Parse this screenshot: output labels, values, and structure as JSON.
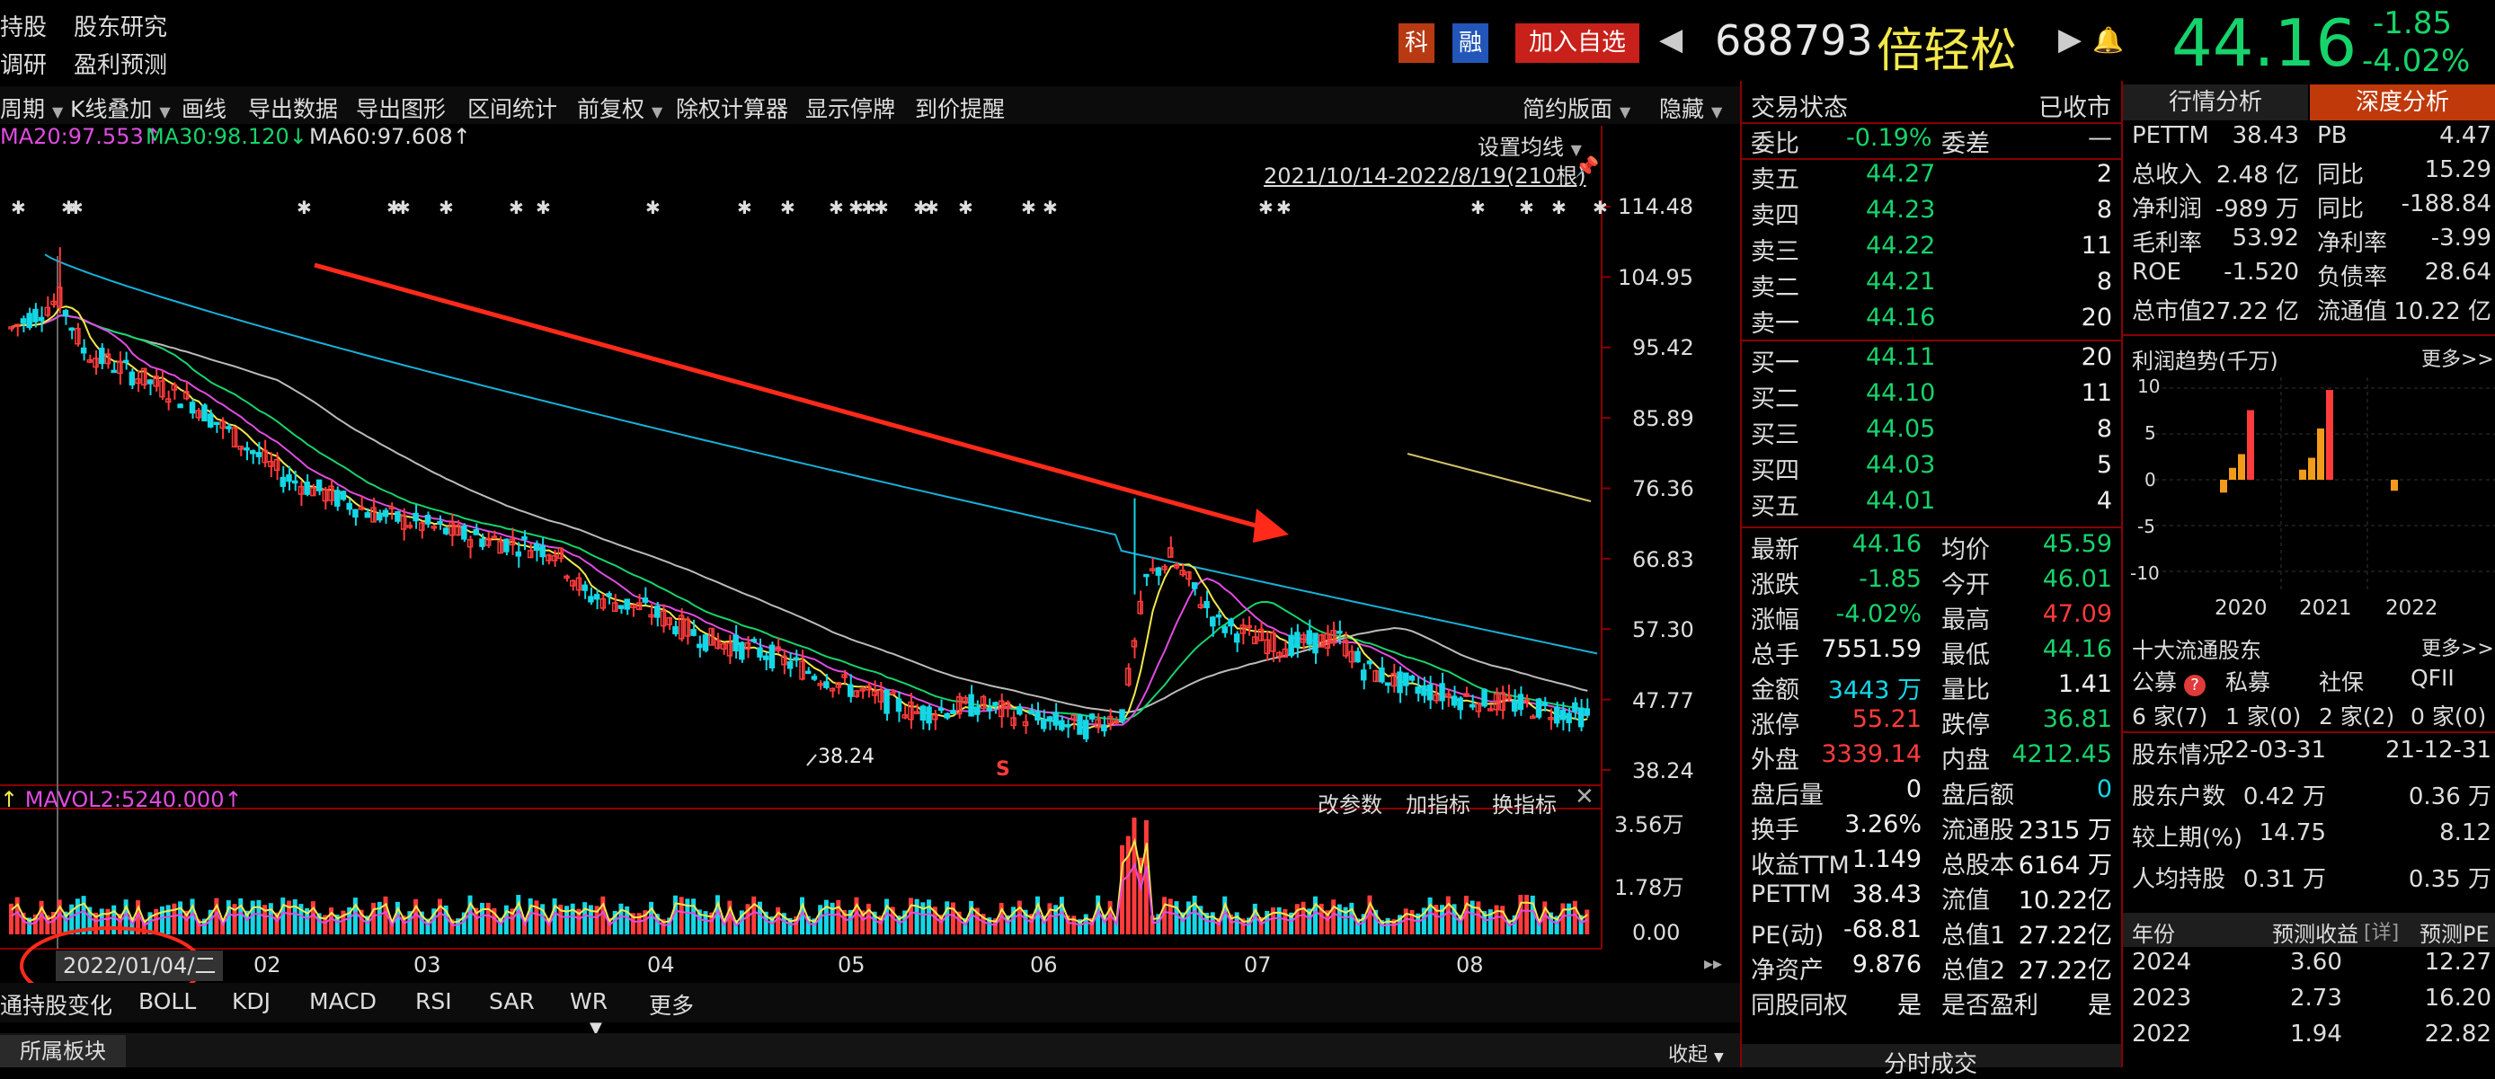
{
  "header": {
    "left_menu": [
      "持股",
      "股东研究",
      "调研",
      "盈利预测"
    ],
    "badge_ke": "科",
    "badge_rong": "融",
    "add_watch": "加入自选",
    "code": "688793",
    "name": "倍轻松",
    "price": "44.16",
    "change": "-1.85",
    "change_pct": "-4.02%"
  },
  "toolbar": [
    "周期",
    "K线叠加",
    "画线",
    "导出数据",
    "导出图形",
    "区间统计",
    "前复权",
    "除权计算器",
    "显示停牌",
    "到价提醒"
  ],
  "toolbar_right": [
    "简约版面",
    "隐藏"
  ],
  "ma_legend": {
    "ma20": "MA20:97.553",
    "ma30": "MA30:98.120",
    "ma60": "MA60:97.608"
  },
  "chart_header": {
    "set_ma": "设置均线",
    "range": "2021/10/14-2022/8/19(210根)"
  },
  "price_axis": [
    "114.48",
    "104.95",
    "95.42",
    "85.89",
    "76.36",
    "66.83",
    "57.30",
    "47.77",
    "38.24"
  ],
  "low_label": "38.24",
  "s_marker": "S",
  "vol_legend": "MAVOL2:5240.000",
  "vol_buttons": [
    "改参数",
    "加指标",
    "换指标"
  ],
  "vol_axis": [
    "3.56万",
    "1.78万",
    "0.00"
  ],
  "date_axis": {
    "cursor_date": "2022/01/04/二",
    "months": [
      "02",
      "03",
      "04",
      "05",
      "06",
      "07",
      "08"
    ]
  },
  "indicator_tabs": [
    "通持股变化",
    "BOLL",
    "KDJ",
    "MACD",
    "RSI",
    "SAR",
    "WR",
    "更多"
  ],
  "bottom_left": "所属板块",
  "bottom_right": "收起",
  "bottom_center": "分时成交",
  "trade_status": {
    "label": "交易状态",
    "value": "已收市"
  },
  "ratio": {
    "wb_label": "委比",
    "wb_value": "-0.19%",
    "wc_label": "委差",
    "wc_value": "—"
  },
  "asks": [
    {
      "label": "卖五",
      "price": "44.27",
      "vol": "2"
    },
    {
      "label": "卖四",
      "price": "44.23",
      "vol": "8"
    },
    {
      "label": "卖三",
      "price": "44.22",
      "vol": "11"
    },
    {
      "label": "卖二",
      "price": "44.21",
      "vol": "8"
    },
    {
      "label": "卖一",
      "price": "44.16",
      "vol": "20"
    }
  ],
  "bids": [
    {
      "label": "买一",
      "price": "44.11",
      "vol": "20"
    },
    {
      "label": "买二",
      "price": "44.10",
      "vol": "11"
    },
    {
      "label": "买三",
      "price": "44.05",
      "vol": "8"
    },
    {
      "label": "买四",
      "price": "44.03",
      "vol": "5"
    },
    {
      "label": "买五",
      "price": "44.01",
      "vol": "4"
    }
  ],
  "quotes": [
    [
      "最新",
      "44.16",
      "均价",
      "45.59"
    ],
    [
      "涨跌",
      "-1.85",
      "今开",
      "46.01"
    ],
    [
      "涨幅",
      "-4.02%",
      "最高",
      "47.09"
    ],
    [
      "总手",
      "7551.59",
      "最低",
      "44.16"
    ],
    [
      "金额",
      "3443 万",
      "量比",
      "1.41"
    ],
    [
      "涨停",
      "55.21",
      "跌停",
      "36.81"
    ],
    [
      "外盘",
      "3339.14",
      "内盘",
      "4212.45"
    ],
    [
      "盘后量",
      "0",
      "盘后额",
      "0"
    ],
    [
      "换手",
      "3.26%",
      "流通股",
      "2315 万"
    ],
    [
      "收益TTM",
      "1.149",
      "总股本",
      "6164 万"
    ],
    [
      "PETTM",
      "38.43",
      "流值",
      "10.22亿"
    ],
    [
      "PE(动)",
      "-68.81",
      "总值1",
      "27.22亿"
    ],
    [
      "净资产",
      "9.876",
      "总值2",
      "27.22亿"
    ],
    [
      "同股同权",
      "是",
      "是否盈利",
      "是"
    ]
  ],
  "right_tabs": [
    "行情分析",
    "深度分析"
  ],
  "fundamentals": [
    [
      "PETTM",
      "38.43",
      "PB",
      "4.47"
    ],
    [
      "总收入",
      "2.48 亿",
      "同比",
      "15.29"
    ],
    [
      "净利润",
      "-989 万",
      "同比",
      "-188.84"
    ],
    [
      "毛利率",
      "53.92",
      "净利率",
      "-3.99"
    ],
    [
      "ROE",
      "-1.520",
      "负债率",
      "28.64"
    ],
    [
      "总市值",
      "27.22 亿",
      "流通值",
      "10.22 亿"
    ]
  ],
  "profit_trend": {
    "title": "利润趋势(千万)",
    "more": "更多>>",
    "y_ticks": [
      "10",
      "5",
      "0",
      "-5",
      "-10"
    ],
    "years": [
      "2020",
      "2021",
      "2022"
    ]
  },
  "holders": {
    "title": "十大流通股东",
    "more": "更多>>",
    "types": [
      "公募",
      "私募",
      "社保",
      "QFII"
    ],
    "counts": [
      "6 家(7)",
      "1 家(0)",
      "2 家(2)",
      "0 家(0)"
    ],
    "rows": [
      [
        "股东情况",
        "22-03-31",
        "21-12-31"
      ],
      [
        "股东户数",
        "0.42 万",
        "0.36 万"
      ],
      [
        "较上期(%)",
        "14.75",
        "8.12"
      ],
      [
        "人均持股",
        "0.31 万",
        "0.35 万"
      ]
    ]
  },
  "forecast": {
    "headers": [
      "年份",
      "预测收益",
      "[详]",
      "预测PE"
    ],
    "rows": [
      [
        "2024",
        "3.60",
        "12.27"
      ],
      [
        "2023",
        "2.73",
        "16.20"
      ],
      [
        "2022",
        "1.94",
        "22.82"
      ]
    ]
  },
  "colors": {
    "up": "#ff3b3b",
    "down": "#17d36b",
    "candle_down": "#14d7e6",
    "grid": "#8a0000"
  }
}
